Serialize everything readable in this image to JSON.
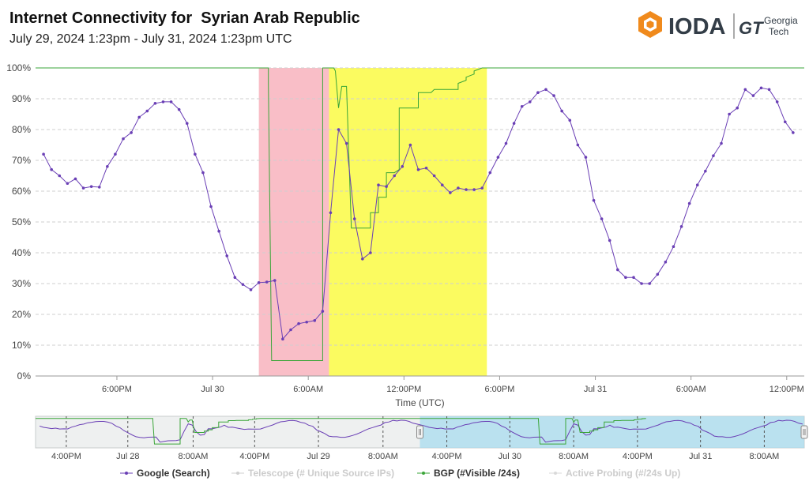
{
  "title": "Internet Connectivity for  Syrian Arab Republic",
  "subtitle": "July 29, 2024 1:23pm - July 31, 2024 1:23pm UTC",
  "logo": {
    "name": "IODA",
    "partner_line1": "Georgia",
    "partner_line2": "Tech",
    "partner_mark": "GT"
  },
  "colors": {
    "google": "#6a3fb5",
    "bgp": "#3aa538",
    "telescope": "#cfcfcf",
    "probing": "#d9d9d9",
    "outage_red": "#f9bec7",
    "outage_yellow": "#fbfb60",
    "overview_window": "#a8dcef"
  },
  "chart_data": {
    "type": "line",
    "title": "Internet Connectivity for  Syrian Arab Republic",
    "xlabel": "Time (UTC)",
    "ylabel": "",
    "ylim": [
      0,
      100
    ],
    "xlim": [
      -0.5,
      47.7
    ],
    "yticks": [
      "0%",
      "10%",
      "20%",
      "30%",
      "40%",
      "50%",
      "60%",
      "70%",
      "80%",
      "90%",
      "100%"
    ],
    "xticks": [
      {
        "label": "6:00PM",
        "at": 4.6
      },
      {
        "label": "Jul 30",
        "at": 10.6
      },
      {
        "label": "6:00AM",
        "at": 16.6
      },
      {
        "label": "12:00PM",
        "at": 22.6
      },
      {
        "label": "6:00PM",
        "at": 28.6
      },
      {
        "label": "Jul 31",
        "at": 34.6
      },
      {
        "label": "6:00AM",
        "at": 40.6
      },
      {
        "label": "12:00PM",
        "at": 46.6
      }
    ],
    "outages": [
      {
        "from": 13.5,
        "to": 17.9,
        "level": "critical"
      },
      {
        "from": 17.9,
        "to": 27.8,
        "level": "warning"
      }
    ],
    "series": [
      {
        "name": "Google (Search)",
        "x": [
          0,
          0.5,
          1,
          1.5,
          2,
          2.5,
          3,
          3.5,
          4,
          4.5,
          5,
          5.5,
          6,
          6.5,
          7,
          7.5,
          8,
          8.5,
          9,
          9.5,
          10,
          10.5,
          11,
          11.5,
          12,
          12.5,
          13,
          13.5,
          14,
          14.5,
          15,
          15.5,
          16,
          16.5,
          17,
          17.5,
          18,
          18.5,
          19,
          19.5,
          20,
          20.5,
          21,
          21.5,
          22,
          22.5,
          23,
          23.5,
          24,
          24.5,
          25,
          25.5,
          26,
          26.5,
          27,
          27.5,
          28,
          28.5,
          29,
          29.5,
          30,
          30.5,
          31,
          31.5,
          32,
          32.5,
          33,
          33.5,
          34,
          34.5,
          35,
          35.5,
          36,
          36.5,
          37,
          37.5,
          38,
          38.5,
          39,
          39.5,
          40,
          40.5,
          41,
          41.5,
          42,
          42.5,
          43,
          43.5,
          44,
          44.5,
          45,
          45.5,
          46,
          46.5,
          47
        ],
        "values": [
          72,
          67,
          65,
          62.5,
          64,
          61,
          61.5,
          61.3,
          68,
          72,
          77,
          79,
          84,
          86,
          88.5,
          89,
          89,
          86.5,
          82,
          72,
          66,
          55,
          47,
          39,
          32,
          29.7,
          28,
          30.3,
          30.5,
          31,
          12,
          15,
          17,
          17.5,
          18,
          21,
          53,
          80,
          75.5,
          51,
          38,
          40,
          62,
          61.5,
          65,
          68,
          75,
          67,
          67.5,
          65,
          62,
          59.5,
          61,
          60.5,
          60.5,
          61,
          66,
          71,
          75.5,
          82,
          87.5,
          89,
          92,
          93,
          91,
          86,
          83,
          75,
          71,
          57,
          51,
          44,
          34.5,
          32,
          32,
          30,
          30,
          33,
          37,
          42,
          48.5,
          56,
          62,
          66.5,
          71.5,
          75.5,
          85,
          87,
          93,
          91,
          93.5,
          93,
          89,
          82.5,
          79
        ]
      },
      {
        "name": "BGP (#Visible /24s)",
        "steps": [
          [
            -0.5,
            100
          ],
          [
            14.1,
            100
          ],
          [
            14.1,
            95
          ],
          [
            14.3,
            5
          ],
          [
            17.5,
            5
          ],
          [
            17.5,
            100
          ],
          [
            18.2,
            100
          ],
          [
            18.3,
            99
          ],
          [
            18.5,
            87
          ],
          [
            18.7,
            94
          ],
          [
            19,
            94
          ],
          [
            19.3,
            48
          ],
          [
            20.5,
            48
          ],
          [
            20.5,
            53
          ],
          [
            21,
            53
          ],
          [
            21,
            58
          ],
          [
            21.5,
            58
          ],
          [
            21.5,
            66
          ],
          [
            22,
            66
          ],
          [
            22.3,
            67
          ],
          [
            22.3,
            87
          ],
          [
            23.5,
            87
          ],
          [
            23.5,
            92
          ],
          [
            24.3,
            92
          ],
          [
            24.5,
            93
          ],
          [
            26,
            93
          ],
          [
            26,
            95
          ],
          [
            26.5,
            96
          ],
          [
            26.5,
            97
          ],
          [
            27,
            98
          ],
          [
            27,
            99
          ],
          [
            27.5,
            100
          ],
          [
            47.7,
            100
          ]
        ]
      },
      {
        "name": "Telescope (# Unique Source IPs)",
        "values": []
      },
      {
        "name": "Active Probing (#/24s Up)",
        "values": []
      }
    ],
    "overview": {
      "xticks": [
        {
          "label": "4:00PM",
          "at": 0.04
        },
        {
          "label": "Jul 28",
          "at": 0.12
        },
        {
          "label": "8:00AM",
          "at": 0.205
        },
        {
          "label": "4:00PM",
          "at": 0.285
        },
        {
          "label": "Jul 29",
          "at": 0.368
        },
        {
          "label": "8:00AM",
          "at": 0.452
        },
        {
          "label": "4:00PM",
          "at": 0.535
        },
        {
          "label": "Jul 30",
          "at": 0.617
        },
        {
          "label": "8:00AM",
          "at": 0.7
        },
        {
          "label": "4:00PM",
          "at": 0.783
        },
        {
          "label": "Jul 31",
          "at": 0.865
        },
        {
          "label": "8:00AM",
          "at": 0.948
        }
      ],
      "selection": [
        0.5,
        1.0
      ]
    }
  },
  "legend": [
    {
      "label": "Google (Search)",
      "active": true
    },
    {
      "label": "Telescope (# Unique Source IPs)",
      "active": false
    },
    {
      "label": "BGP (#Visible /24s)",
      "active": true
    },
    {
      "label": "Active Probing (#/24s Up)",
      "active": false
    }
  ]
}
